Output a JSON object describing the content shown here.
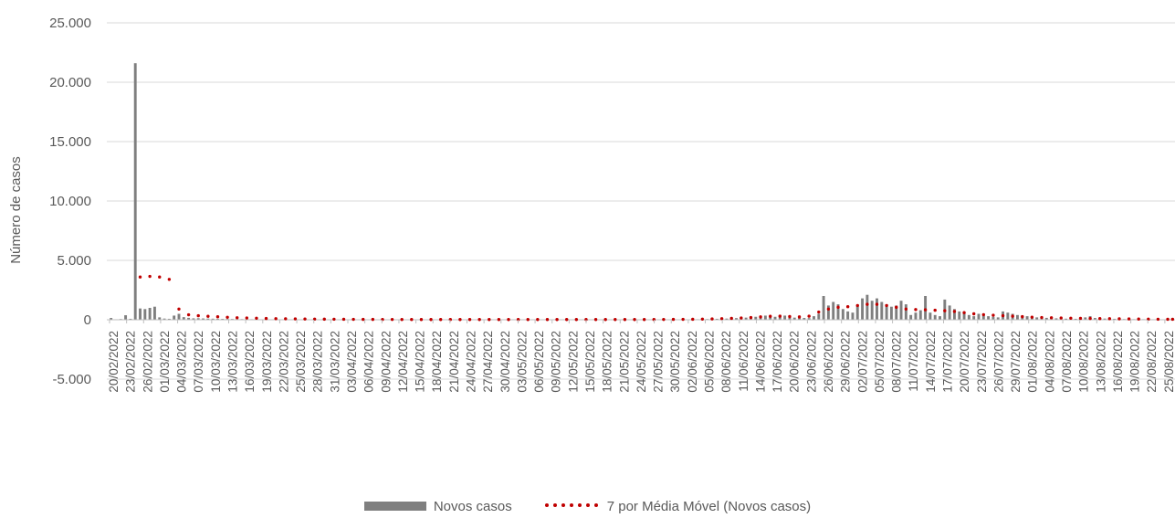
{
  "chart_data": {
    "type": "bar",
    "title": "",
    "ylabel": "Número de casos",
    "xlabel": "",
    "ylim": [
      -5000,
      25000
    ],
    "yticks": [
      "25.000",
      "20.000",
      "15.000",
      "10.000",
      "5.000",
      "0",
      "-5.000"
    ],
    "ytick_values": [
      25000,
      20000,
      15000,
      10000,
      5000,
      0,
      -5000
    ],
    "grid": true,
    "legend_position": "bottom",
    "x_tick_labels": [
      "20/02/2022",
      "23/02/2022",
      "26/02/2022",
      "01/03/2022",
      "04/03/2022",
      "07/03/2022",
      "10/03/2022",
      "13/03/2022",
      "16/03/2022",
      "19/03/2022",
      "22/03/2022",
      "25/03/2022",
      "28/03/2022",
      "31/03/2022",
      "03/04/2022",
      "06/04/2022",
      "09/04/2022",
      "12/04/2022",
      "15/04/2022",
      "18/04/2022",
      "21/04/2022",
      "24/04/2022",
      "27/04/2022",
      "30/04/2022",
      "03/05/2022",
      "06/05/2022",
      "09/05/2022",
      "12/05/2022",
      "15/05/2022",
      "18/05/2022",
      "21/05/2022",
      "24/05/2022",
      "27/05/2022",
      "30/05/2022",
      "02/06/2022",
      "05/06/2022",
      "08/06/2022",
      "11/06/2022",
      "14/06/2022",
      "17/06/2022",
      "20/06/2022",
      "23/06/2022",
      "26/06/2022",
      "29/06/2022",
      "02/07/2022",
      "05/07/2022",
      "08/07/2022",
      "11/07/2022",
      "14/07/2022",
      "17/07/2022",
      "20/07/2022",
      "23/07/2022",
      "26/07/2022",
      "29/07/2022",
      "01/08/2022",
      "04/08/2022",
      "07/08/2022",
      "10/08/2022",
      "13/08/2022",
      "16/08/2022",
      "19/08/2022",
      "22/08/2022",
      "25/08/2022"
    ],
    "series": [
      {
        "name": "Novos casos",
        "type": "bar",
        "color": "#7f7f7f",
        "values": [
          150,
          40,
          60,
          380,
          80,
          21600,
          950,
          900,
          1000,
          1100,
          200,
          100,
          80,
          350,
          500,
          220,
          160,
          120,
          130,
          110,
          100,
          90,
          80,
          75,
          70,
          65,
          60,
          55,
          50,
          45,
          45,
          40,
          40,
          35,
          35,
          30,
          30,
          30,
          25,
          25,
          25,
          25,
          20,
          20,
          20,
          20,
          20,
          20,
          20,
          20,
          20,
          20,
          15,
          15,
          15,
          15,
          15,
          15,
          15,
          15,
          15,
          15,
          15,
          15,
          15,
          15,
          15,
          15,
          15,
          15,
          15,
          15,
          15,
          15,
          15,
          15,
          15,
          15,
          15,
          15,
          15,
          15,
          15,
          15,
          15,
          15,
          15,
          15,
          15,
          15,
          15,
          15,
          15,
          15,
          15,
          15,
          15,
          15,
          15,
          15,
          15,
          15,
          15,
          15,
          15,
          15,
          15,
          15,
          15,
          15,
          15,
          15,
          20,
          20,
          20,
          25,
          25,
          30,
          30,
          35,
          40,
          45,
          50,
          60,
          70,
          80,
          90,
          100,
          120,
          140,
          160,
          180,
          200,
          250,
          300,
          350,
          300,
          250,
          400,
          350,
          200,
          180,
          160,
          150,
          140,
          300,
          500,
          2000,
          1200,
          1500,
          1300,
          900,
          700,
          600,
          1200,
          1800,
          2100,
          1600,
          1800,
          1500,
          1300,
          1100,
          1200,
          1600,
          1300,
          400,
          600,
          800,
          2000,
          600,
          400,
          300,
          1700,
          1200,
          900,
          700,
          600,
          400,
          300,
          500,
          350,
          300,
          250,
          200,
          700,
          600,
          500,
          400,
          350,
          300,
          250,
          200,
          180,
          160,
          140,
          120,
          100,
          90,
          80,
          80,
          120,
          200,
          300,
          150,
          120,
          100,
          90,
          80,
          70,
          60,
          60,
          50,
          50,
          45,
          40,
          40,
          35,
          30,
          30,
          25
        ]
      },
      {
        "name": "7 por Média Móvel (Novos casos)",
        "type": "line",
        "style": "dotted",
        "color": "#c00000",
        "values": [
          null,
          null,
          null,
          null,
          null,
          null,
          3600,
          3650,
          3650,
          3600,
          3600,
          3550,
          3400,
          1700,
          900,
          550,
          420,
          380,
          340,
          310,
          290,
          270,
          250,
          230,
          210,
          190,
          170,
          160,
          150,
          140,
          130,
          120,
          110,
          100,
          95,
          90,
          85,
          80,
          75,
          70,
          65,
          60,
          55,
          50,
          48,
          46,
          44,
          42,
          40,
          38,
          36,
          34,
          32,
          30,
          29,
          28,
          27,
          26,
          25,
          24,
          23,
          22,
          21,
          20,
          20,
          20,
          20,
          20,
          20,
          20,
          20,
          20,
          20,
          20,
          20,
          20,
          20,
          20,
          20,
          20,
          20,
          20,
          20,
          20,
          20,
          20,
          20,
          20,
          20,
          20,
          20,
          20,
          20,
          20,
          20,
          20,
          20,
          20,
          20,
          20,
          20,
          20,
          20,
          20,
          20,
          20,
          20,
          20,
          20,
          20,
          20,
          20,
          22,
          24,
          26,
          28,
          30,
          32,
          35,
          38,
          42,
          48,
          55,
          62,
          70,
          80,
          92,
          105,
          120,
          135,
          150,
          165,
          185,
          210,
          240,
          270,
          290,
          300,
          300,
          290,
          270,
          250,
          240,
          240,
          300,
          450,
          650,
          800,
          900,
          1000,
          1050,
          1100,
          1100,
          1150,
          1200,
          1250,
          1300,
          1300,
          1300,
          1250,
          1200,
          1150,
          1050,
          950,
          900,
          880,
          860,
          850,
          840,
          820,
          800,
          780,
          760,
          740,
          700,
          650,
          600,
          550,
          500,
          460,
          430,
          400,
          380,
          360,
          340,
          320,
          300,
          280,
          260,
          240,
          220,
          200,
          190,
          180,
          170,
          160,
          150,
          140,
          130,
          125,
          120,
          115,
          110,
          105,
          100,
          95,
          90,
          85,
          80,
          75,
          70,
          65,
          60,
          55,
          50,
          48,
          46,
          44,
          42,
          40
        ]
      }
    ]
  }
}
